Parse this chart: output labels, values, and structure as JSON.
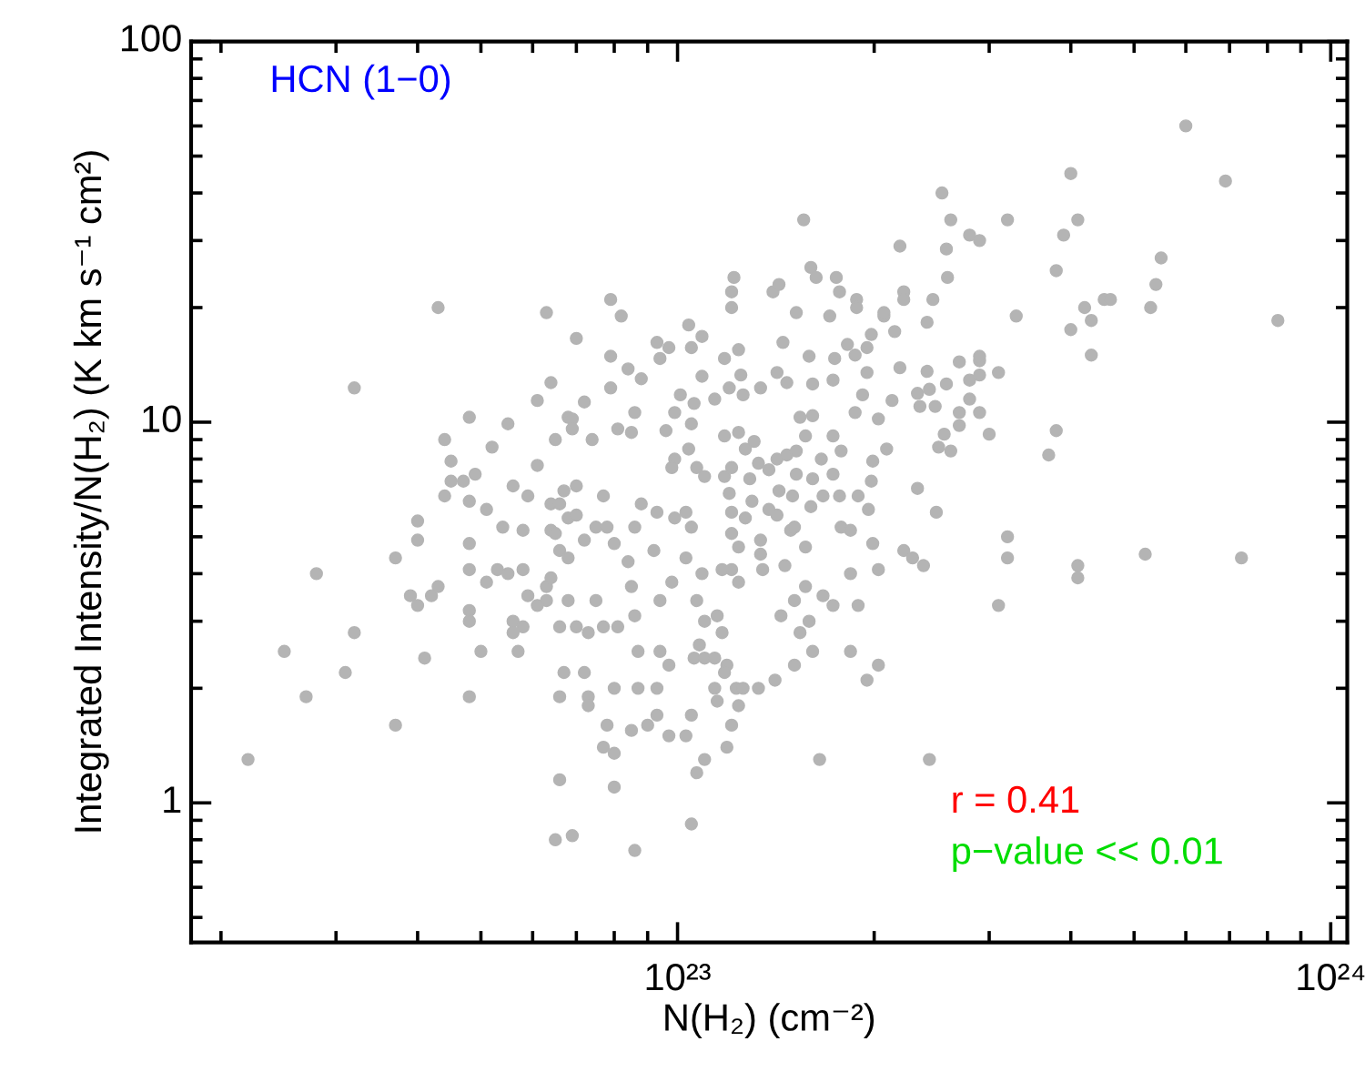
{
  "chart_data": {
    "type": "scatter",
    "xlabel": "N(H₂) (cm⁻²)",
    "ylabel": "Integrated Intensity/N(H₂) (K km s⁻¹ cm²)",
    "annotations": [
      "HCN (1−0)",
      "r = 0.41",
      "p−value << 0.01"
    ],
    "log": "xy",
    "grid": false,
    "legend": false,
    "marker": "circle",
    "xlim": [
      1.8e+22,
      1.06e+24
    ],
    "xticks": [
      {
        "value": 1e+23,
        "label": "10²³"
      },
      {
        "value": 1e+24,
        "label": "10²⁴"
      }
    ],
    "ylim": [
      0.43,
      100
    ],
    "yticks": [
      1,
      10,
      100
    ],
    "series": [
      {
        "color": "#b4b4b4",
        "x": [
          2.2e+22,
          2.5e+22,
          2.7e+22,
          2.8e+22,
          3.1e+22,
          3.2e+22,
          3.2e+22,
          3.7e+22,
          3.7e+22,
          4e+22,
          4e+22,
          3.9e+22,
          4e+22,
          4.1e+22,
          4.2e+22,
          4.3e+22,
          4.3e+22,
          4.4e+22,
          4.5e+22,
          4.5e+22,
          4.7e+22,
          4.4e+22,
          4.8e+22,
          4.8e+22,
          4.9e+22,
          5.2e+22,
          5.1e+22,
          4.8e+22,
          4.8e+22,
          5.3e+22,
          5.1e+22,
          4.8e+22,
          4.8e+22,
          5e+22,
          4.8e+22,
          5.5e+22,
          5.6e+22,
          5.9e+22,
          5.4e+22,
          5.8e+22,
          5.8e+22,
          5.5e+22,
          5.9e+22,
          5.6e+22,
          5.6e+22,
          5.8e+22,
          5.7e+22,
          6.3e+22,
          6.1e+22,
          6.4e+22,
          7e+22,
          6.4e+22,
          6.4e+22,
          6.3e+22,
          6.3e+22,
          6.1e+22,
          6.6e+22,
          6.7e+22,
          6.6e+22,
          6.6e+22,
          6.5e+22,
          6.9e+22,
          6.8e+22,
          6.5e+22,
          6.1e+22,
          6.7e+22,
          6.8e+22,
          6.6e+22,
          6.8e+22,
          1.56e+23,
          2.19e+23,
          1.6e+23,
          1.63e+23,
          1.75e+23,
          1.22e+23,
          1.21e+23,
          1.21e+23,
          1.4e+23,
          1.43e+23,
          1.77e+23,
          1.88e+23,
          1.88e+23,
          1.71e+23,
          1.52e+23,
          7.9e+22,
          8.2e+22,
          1.04e+23,
          1.09e+23,
          9.3e+22,
          9.7e+22,
          1.05e+23,
          9.4e+22,
          1.18e+23,
          1.24e+23,
          1.25e+23,
          1.09e+23,
          1.45e+23,
          1.59e+23,
          1.74e+23,
          1.82e+23,
          1.95e+23,
          1.98e+23,
          2.07e+23,
          2.15e+23,
          2.19e+23,
          1.87e+23,
          1.95e+23,
          1.73e+23,
          1.61e+23,
          1.47e+23,
          1.42e+23,
          1.34e+23,
          1.26e+23,
          1.2e+23,
          1.14e+23,
          1.06e+23,
          1.01e+23,
          9.9e+22,
          8.8e+22,
          8.4e+22,
          7.9e+22,
          7.9e+22,
          7.2e+22,
          6.9e+22,
          6.9e+22,
          7.4e+22,
          8.1e+22,
          8.6e+22,
          8.5e+22,
          9.6e+22,
          1.05e+23,
          1.04e+23,
          9.9e+22,
          9.8e+22,
          1.07e+23,
          1.1e+23,
          1.18e+23,
          1.24e+23,
          1.27e+23,
          1.31e+23,
          1.42e+23,
          1.47e+23,
          1.52e+23,
          1.57e+23,
          1.61e+23,
          1.54e+23,
          1.66e+23,
          1.73e+23,
          1.78e+23,
          1.87e+23,
          1.92e+23,
          2.03e+23,
          2.09e+23,
          1.99e+23,
          1.73e+23,
          1.61e+23,
          1.52e+23,
          1.38e+23,
          1.33e+23,
          1.29e+23,
          1.21e+23,
          1.18e+23,
          1.98e+23,
          1.89e+23,
          1.96e+23,
          1.77e+23,
          1.67e+23,
          1.6e+23,
          1.5e+23,
          1.43e+23,
          1.38e+23,
          1.3e+23,
          1.27e+23,
          1.2e+23,
          1.21e+23,
          1.21e+23,
          1.24e+23,
          1.34e+23,
          1.34e+23,
          1.42e+23,
          1.49e+23,
          1.57e+23,
          1.51e+23,
          1.78e+23,
          1.84e+23,
          1.99e+23,
          2.03e+23,
          1.84e+23,
          1.73e+23,
          1.67e+23,
          1.57e+23,
          1.51e+23,
          1.44e+23,
          1.59e+23,
          1.54e+23,
          1.61e+23,
          1.51e+23,
          1.41e+23,
          1.33e+23,
          1.23e+23,
          1.24e+23,
          1.19e+23,
          1.14e+23,
          1.15e+23,
          1.21e+23,
          1.19e+23,
          1.1e+23,
          1.07e+23,
          1.05e+23,
          1.65e+23,
          1.89e+23,
          1.84e+23,
          1.95e+23,
          2.03e+23,
          2.22e+23,
          1.05e+23,
          1.03e+23,
          9.7e+22,
          9.3e+22,
          9e+22,
          8.5e+22,
          7.7e+22,
          8e+22,
          7.8e+22,
          8e+22,
          8.6e+22,
          7.3e+22,
          7.3e+22,
          7.2e+22,
          8e+22,
          8.7e+22,
          9.3e+22,
          8.7e+22,
          9.4e+22,
          9.7e+22,
          1.06e+23,
          1.1e+23,
          1.14e+23,
          1.18e+23,
          1.26e+23,
          1.08e+23,
          1.17e+23,
          1.1e+23,
          1.15e+23,
          1.07e+23,
          1.09e+23,
          1.03e+23,
          9.8e+22,
          9.4e+22,
          9.2e+22,
          8.4e+22,
          8.5e+22,
          8.6e+22,
          8.1e+22,
          7.7e+22,
          7.3e+22,
          7e+22,
          7.5e+22,
          7.5e+22,
          7.2e+22,
          6.8e+22,
          6.5e+22,
          6.4e+22,
          7.8e+22,
          8e+22,
          8.6e+22,
          8.8e+22,
          9.3e+22,
          9.9e+22,
          1.03e+23,
          1.05e+23,
          7.7e+22,
          7e+22,
          6.6e+22,
          7e+22,
          1.21e+23,
          1.17e+23,
          1.24e+23,
          1.35e+23,
          1.46e+23,
          6e+23,
          6.9e+23,
          4e+23,
          2.54e+23,
          2.62e+23,
          3.2e+23,
          4.1e+23,
          2.8e+23,
          2.9e+23,
          3.9e+23,
          2.58e+23,
          5.5e+23,
          3.8e+23,
          2.22e+23,
          2.22e+23,
          2.46e+23,
          2.59e+23,
          5.4e+23,
          4.5e+23,
          4.6e+23,
          2.07e+23,
          2.41e+23,
          3.3e+23,
          4.2e+23,
          5.3e+23,
          4.3e+23,
          4e+23,
          8.3e+23,
          4.3e+23,
          2.7e+23,
          2.9e+23,
          2.9e+23,
          2.41e+23,
          2.9e+23,
          3.1e+23,
          2.8e+23,
          2.58e+23,
          2.43e+23,
          2.33e+23,
          2.8e+23,
          2.13e+23,
          2.35e+23,
          2.48e+23,
          2.7e+23,
          2.9e+23,
          2.7e+23,
          2.56e+23,
          3e+23,
          3.8e+23,
          3.7e+23,
          2.51e+23,
          2.62e+23,
          2.33e+23,
          2.49e+23,
          2.29e+23,
          2.38e+23,
          3.2e+23,
          3.2e+23,
          3.1e+23,
          4.1e+23,
          4.1e+23,
          5.2e+23,
          7.3e+23,
          2.43e+23
        ],
        "values": [
          1.3,
          2.5,
          1.9,
          4.0,
          2.2,
          2.8,
          12.3,
          1.6,
          4.4,
          4.9,
          5.5,
          3.5,
          3.3,
          2.4,
          3.5,
          3.7,
          20,
          9.0,
          7.9,
          7.0,
          7.0,
          6.4,
          6.2,
          10.3,
          7.3,
          8.6,
          5.9,
          4.8,
          4.1,
          4.1,
          3.8,
          3.2,
          3.0,
          2.5,
          1.9,
          9.9,
          6.8,
          6.4,
          5.3,
          5.2,
          4.1,
          4.0,
          3.5,
          3.0,
          2.8,
          2.9,
          2.5,
          19.4,
          11.4,
          12.7,
          16.6,
          6.1,
          5.2,
          3.7,
          3.4,
          3.3,
          2.9,
          2.2,
          1.9,
          1.15,
          0.8,
          0.82,
          10.3,
          9.0,
          7.7,
          6.6,
          5.6,
          4.6,
          3.4,
          34,
          29,
          25.5,
          24,
          24,
          24,
          22,
          20,
          22,
          23,
          22,
          21,
          20,
          19,
          19.4,
          21,
          19,
          18,
          16.8,
          16.2,
          15.7,
          15.7,
          14.7,
          14.7,
          15.5,
          13.3,
          13.2,
          16.2,
          14.9,
          14.7,
          16,
          15.7,
          17,
          19,
          17.3,
          13.9,
          15,
          13.5,
          12.9,
          12.6,
          12.7,
          13.5,
          12.3,
          11.8,
          12.3,
          11.5,
          11.2,
          11.8,
          10.6,
          13,
          13.8,
          14.9,
          12.3,
          11.3,
          10.2,
          9.6,
          9.0,
          9.6,
          10.6,
          9.4,
          9.5,
          9.9,
          8.5,
          8.0,
          7.6,
          7.6,
          7.2,
          9.2,
          9.4,
          8.5,
          8.9,
          8.0,
          8.2,
          8.4,
          9.2,
          10.4,
          10.3,
          8.0,
          9.2,
          8.4,
          10.6,
          11.8,
          10.2,
          8.5,
          7.9,
          7.3,
          7.1,
          7.3,
          7.5,
          7.8,
          7.1,
          7.6,
          7.2,
          7.0,
          6.4,
          5.9,
          6.4,
          6.4,
          6.0,
          6.4,
          6.6,
          5.9,
          6.2,
          5.6,
          6.5,
          5.8,
          5.1,
          4.7,
          4.9,
          4.5,
          5.7,
          5.2,
          4.7,
          5.3,
          5.3,
          5.2,
          4.8,
          4.1,
          4.0,
          3.3,
          3.5,
          3.7,
          3.4,
          3.1,
          3.0,
          2.8,
          2.5,
          2.3,
          2.1,
          2.0,
          2.0,
          1.8,
          2.3,
          2.0,
          1.85,
          1.6,
          1.4,
          1.3,
          1.2,
          0.88,
          1.3,
          3.3,
          2.5,
          2.1,
          2.3,
          4.6,
          1.7,
          1.5,
          1.5,
          1.7,
          1.6,
          1.55,
          1.4,
          1.35,
          1.6,
          1.1,
          0.75,
          1.9,
          1.8,
          2.2,
          2.0,
          2.0,
          2.0,
          2.5,
          2.5,
          2.3,
          2.4,
          2.4,
          2.4,
          2.2,
          2.0,
          2.6,
          2.8,
          3.0,
          3.1,
          3.4,
          4.0,
          4.4,
          3.8,
          3.4,
          4.6,
          4.3,
          3.7,
          3.1,
          2.9,
          2.9,
          2.8,
          2.9,
          3.4,
          5.3,
          4.9,
          4.4,
          5.1,
          3.9,
          5.3,
          4.8,
          5.3,
          6.1,
          5.8,
          5.6,
          5.8,
          5.3,
          6.4,
          6.8,
          6.1,
          5.7,
          4.1,
          4.1,
          3.8,
          4.1,
          4.2,
          60,
          43,
          45,
          40,
          34,
          34,
          34,
          31,
          30,
          31,
          28.5,
          27,
          25,
          22,
          21,
          21,
          24,
          23,
          21,
          21,
          19.4,
          18.3,
          19,
          20,
          20,
          18.5,
          17.5,
          18.5,
          15,
          14.4,
          14.5,
          14.9,
          13.6,
          13.3,
          13.5,
          12.9,
          12.6,
          12.2,
          11.9,
          11.5,
          11.4,
          11.0,
          11.0,
          10.6,
          10.6,
          9.8,
          9.3,
          9.3,
          9.5,
          8.2,
          8.6,
          8.4,
          6.7,
          5.8,
          4.4,
          4.2,
          5.0,
          4.4,
          3.3,
          4.2,
          3.9,
          4.5,
          4.4,
          1.3
        ]
      }
    ]
  }
}
